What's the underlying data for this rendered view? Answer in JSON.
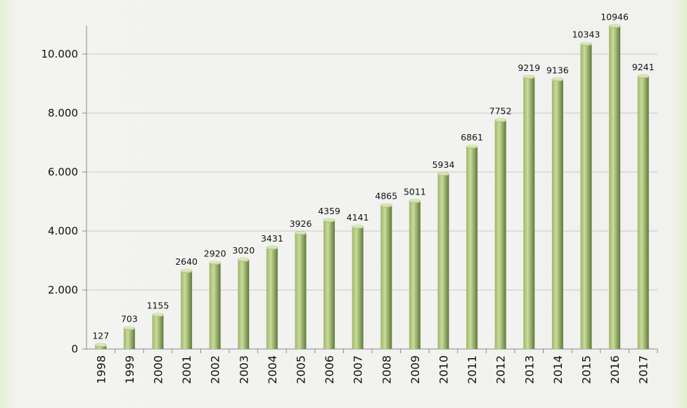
{
  "chart_data": {
    "type": "bar",
    "categories": [
      "1998",
      "1999",
      "2000",
      "2001",
      "2002",
      "2003",
      "2004",
      "2005",
      "2006",
      "2007",
      "2008",
      "2009",
      "2010",
      "2011",
      "2012",
      "2013",
      "2014",
      "2015",
      "2016",
      "2017"
    ],
    "values": [
      127,
      703,
      1155,
      2640,
      2920,
      3020,
      3431,
      3926,
      4359,
      4141,
      4865,
      5011,
      5934,
      6861,
      7752,
      9219,
      9136,
      10343,
      10946,
      9241
    ],
    "data_labels": [
      "127",
      "703",
      "1155",
      "2640",
      "2920",
      "3020",
      "3431",
      "3926",
      "4359",
      "4141",
      "4865",
      "5011",
      "5934",
      "6861",
      "7752",
      "9219",
      "9136",
      "10343",
      "10946",
      "9241"
    ],
    "y_ticks": [
      0,
      2000,
      4000,
      6000,
      8000,
      10000
    ],
    "y_tick_labels": [
      "0",
      "2.000",
      "4.000",
      "6.000",
      "8.000",
      "10.000"
    ],
    "ylim": [
      0,
      11000
    ],
    "title": "",
    "xlabel": "",
    "ylabel": "",
    "grid": true,
    "legend": "none",
    "colors": {
      "bar_light": "#c9dc9a",
      "bar_mid": "#9eb56a",
      "bar_dark": "#5f7a38",
      "gridline": "#c8c8c8",
      "axis": "#8a8a8a"
    }
  }
}
